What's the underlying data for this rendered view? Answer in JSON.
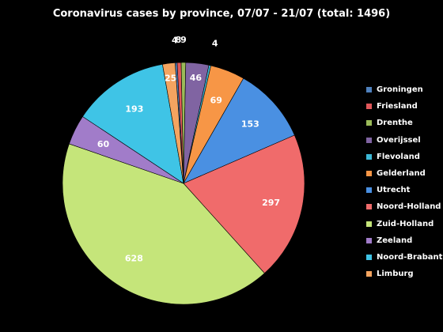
{
  "chart_data": {
    "type": "pie",
    "title": "Coronavirus cases by province, 07/07 - 21/07 (total: 1496)",
    "categories": [
      "Groningen",
      "Friesland",
      "Drenthe",
      "Overijssel",
      "Flevoland",
      "Gelderland",
      "Utrecht",
      "Noord-Holland",
      "Zuid-Holland",
      "Zeeland",
      "Noord-Brabant",
      "Limburg"
    ],
    "values": [
      4,
      8,
      9,
      46,
      4,
      69,
      153,
      297,
      628,
      60,
      193,
      25
    ],
    "value_labels": [
      "4",
      "8",
      "9",
      "46",
      "4",
      "69",
      "153",
      "297",
      "628",
      "60",
      "193",
      "25"
    ],
    "colors": [
      "#4f81bd",
      "#e0575a",
      "#9bbb59",
      "#8064a2",
      "#3cb8d6",
      "#f79646",
      "#4a90e2",
      "#f06b6b",
      "#c5e57a",
      "#a17cc9",
      "#3fc4e6",
      "#f4a460"
    ],
    "legend_position": "right",
    "start_angle_degrees": -4,
    "direction": "clockwise"
  }
}
